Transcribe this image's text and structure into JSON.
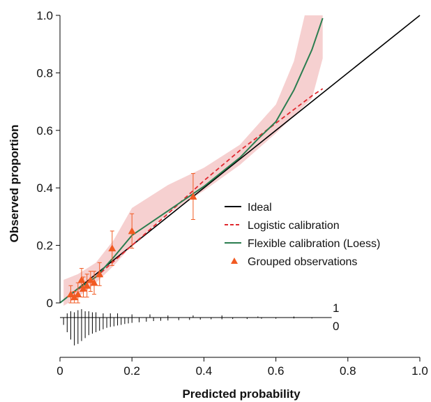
{
  "chart_data": {
    "type": "line",
    "xlabel": "Predicted probability",
    "ylabel": "Observed proportion",
    "xlim": [
      0,
      1
    ],
    "ylim": [
      0,
      1
    ],
    "x_ticks": [
      "0",
      "0.2",
      "0.4",
      "0.6",
      "0.8",
      "1.0"
    ],
    "y_ticks": [
      "0",
      "0.2",
      "0.4",
      "0.6",
      "0.8",
      "1.0"
    ],
    "x_tick_values": [
      0,
      0.2,
      0.4,
      0.6,
      0.8,
      1.0
    ],
    "y_tick_values": [
      0,
      0.2,
      0.4,
      0.6,
      0.8,
      1.0
    ],
    "legend_position": "center-right",
    "legend": [
      {
        "label": "Ideal",
        "symbol": "solid-line",
        "color": "#000000"
      },
      {
        "label": "Logistic calibration",
        "symbol": "dashed-line",
        "color": "#e0282e"
      },
      {
        "label": "Flexible calibration (Loess)",
        "symbol": "solid-line",
        "color": "#2a7d4f"
      },
      {
        "label": "Grouped observations",
        "symbol": "triangle",
        "color": "#f15a22"
      }
    ],
    "colors": {
      "ideal": "#000000",
      "logistic": "#e0282e",
      "loess": "#2a7d4f",
      "band": "#f4c4c4",
      "points": "#f15a22"
    },
    "series": [
      {
        "name": "Ideal",
        "points": [
          [
            0,
            0
          ],
          [
            1.0,
            1.0
          ]
        ]
      },
      {
        "name": "Logistic calibration",
        "points": [
          [
            0.02,
            0.02
          ],
          [
            0.1,
            0.09
          ],
          [
            0.2,
            0.2
          ],
          [
            0.3,
            0.31
          ],
          [
            0.4,
            0.425
          ],
          [
            0.5,
            0.53
          ],
          [
            0.6,
            0.625
          ],
          [
            0.7,
            0.72
          ],
          [
            0.73,
            0.745
          ]
        ]
      },
      {
        "name": "Flexible calibration (Loess)",
        "points": [
          [
            0,
            0.0
          ],
          [
            0.05,
            0.05
          ],
          [
            0.1,
            0.09
          ],
          [
            0.15,
            0.16
          ],
          [
            0.2,
            0.235
          ],
          [
            0.3,
            0.32
          ],
          [
            0.4,
            0.405
          ],
          [
            0.5,
            0.505
          ],
          [
            0.55,
            0.57
          ],
          [
            0.6,
            0.63
          ],
          [
            0.65,
            0.74
          ],
          [
            0.7,
            0.88
          ],
          [
            0.73,
            0.99
          ]
        ]
      }
    ],
    "confidence_band": {
      "upper": [
        [
          0.01,
          0.08
        ],
        [
          0.05,
          0.1
        ],
        [
          0.1,
          0.14
        ],
        [
          0.15,
          0.22
        ],
        [
          0.2,
          0.33
        ],
        [
          0.3,
          0.41
        ],
        [
          0.4,
          0.47
        ],
        [
          0.5,
          0.55
        ],
        [
          0.6,
          0.69
        ],
        [
          0.65,
          0.84
        ],
        [
          0.68,
          1.0
        ],
        [
          0.73,
          1.0
        ]
      ],
      "lower": [
        [
          0.73,
          0.85
        ],
        [
          0.7,
          0.71
        ],
        [
          0.6,
          0.59
        ],
        [
          0.5,
          0.48
        ],
        [
          0.4,
          0.39
        ],
        [
          0.3,
          0.31
        ],
        [
          0.2,
          0.2
        ],
        [
          0.15,
          0.13
        ],
        [
          0.1,
          0.07
        ],
        [
          0.05,
          0.02
        ],
        [
          0.01,
          -0.01
        ]
      ]
    },
    "grouped_observations": [
      {
        "x": 0.03,
        "y": 0.03,
        "lo": 0.0,
        "hi": 0.06
      },
      {
        "x": 0.04,
        "y": 0.02,
        "lo": 0.0,
        "hi": 0.04
      },
      {
        "x": 0.05,
        "y": 0.03,
        "lo": 0.0,
        "hi": 0.07
      },
      {
        "x": 0.06,
        "y": 0.08,
        "lo": 0.04,
        "hi": 0.12
      },
      {
        "x": 0.065,
        "y": 0.05,
        "lo": 0.02,
        "hi": 0.09
      },
      {
        "x": 0.075,
        "y": 0.06,
        "lo": 0.02,
        "hi": 0.1
      },
      {
        "x": 0.085,
        "y": 0.08,
        "lo": 0.04,
        "hi": 0.11
      },
      {
        "x": 0.095,
        "y": 0.07,
        "lo": 0.03,
        "hi": 0.11
      },
      {
        "x": 0.11,
        "y": 0.1,
        "lo": 0.06,
        "hi": 0.14
      },
      {
        "x": 0.145,
        "y": 0.19,
        "lo": 0.13,
        "hi": 0.25
      },
      {
        "x": 0.2,
        "y": 0.25,
        "lo": 0.19,
        "hi": 0.31
      },
      {
        "x": 0.37,
        "y": 0.37,
        "lo": 0.29,
        "hi": 0.45
      }
    ],
    "rug": {
      "top_label": "1",
      "bottom_label": "0",
      "event_x": [
        0.02,
        0.03,
        0.04,
        0.05,
        0.06,
        0.07,
        0.08,
        0.09,
        0.1,
        0.12,
        0.14,
        0.16,
        0.2,
        0.25,
        0.3,
        0.37,
        0.45,
        0.55,
        0.65
      ],
      "event_heights": [
        0.2,
        0.3,
        0.25,
        0.35,
        0.4,
        0.3,
        0.3,
        0.25,
        0.25,
        0.2,
        0.2,
        0.2,
        0.15,
        0.15,
        0.1,
        0.1,
        0.1,
        0.05,
        0.05
      ],
      "nonevent_x": [
        0.01,
        0.02,
        0.03,
        0.04,
        0.05,
        0.06,
        0.07,
        0.08,
        0.09,
        0.1,
        0.11,
        0.12,
        0.13,
        0.14,
        0.15,
        0.16,
        0.17,
        0.18,
        0.19,
        0.2,
        0.22,
        0.24,
        0.26,
        0.28,
        0.3,
        0.33,
        0.36,
        0.39,
        0.42,
        0.45,
        0.48,
        0.52,
        0.56,
        0.6,
        0.65,
        0.7
      ],
      "nonevent_heights": [
        0.25,
        0.5,
        0.75,
        0.95,
        0.9,
        0.8,
        0.7,
        0.6,
        0.55,
        0.5,
        0.45,
        0.4,
        0.35,
        0.32,
        0.3,
        0.27,
        0.25,
        0.22,
        0.2,
        0.18,
        0.16,
        0.14,
        0.12,
        0.11,
        0.1,
        0.09,
        0.08,
        0.07,
        0.06,
        0.06,
        0.05,
        0.05,
        0.04,
        0.04,
        0.03,
        0.03
      ]
    }
  }
}
